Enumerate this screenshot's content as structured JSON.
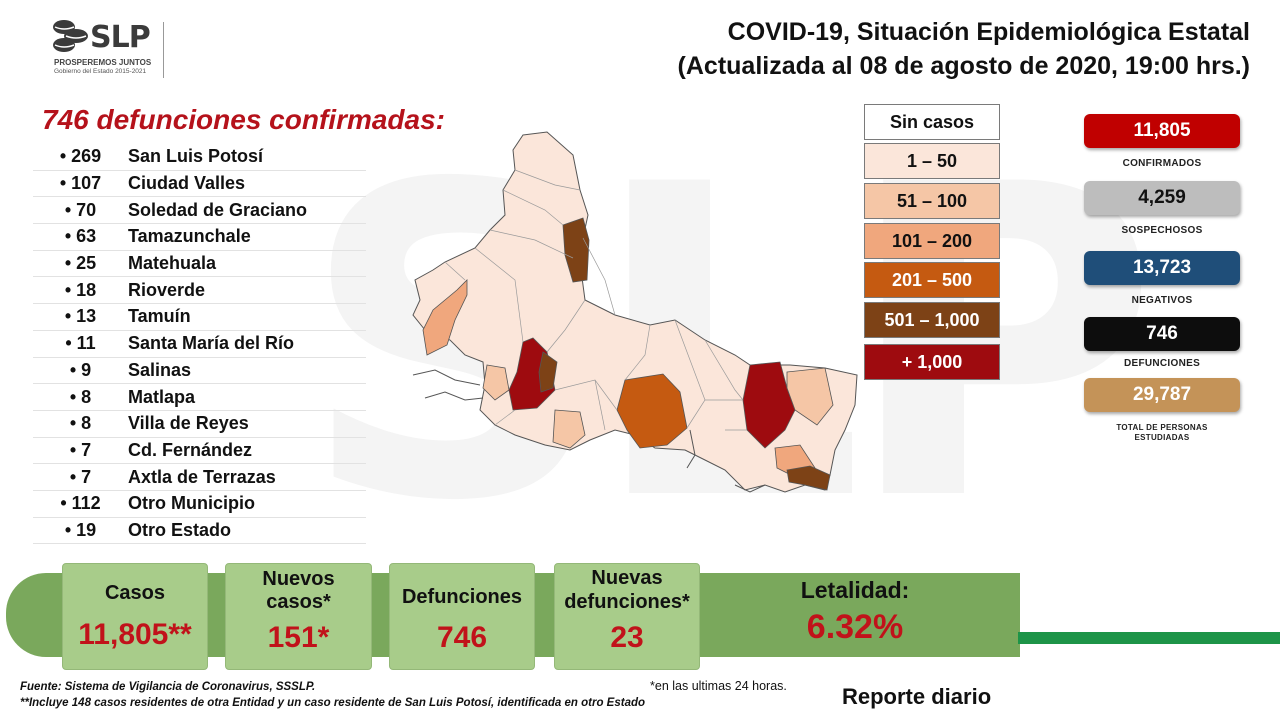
{
  "header": {
    "logo_text": "SLP",
    "logo_sub1": "PROSPEREMOS JUNTOS",
    "logo_sub2": "Gobierno del Estado 2015-2021",
    "title_line1": "COVID-19, Situación Epidemiológica Estatal",
    "title_line2": "(Actualizada al 08 de agosto de 2020, 19:00 hrs.)"
  },
  "deaths": {
    "heading": "746 defunciones confirmadas:",
    "rows": [
      {
        "count": "• 269",
        "name": "San Luis Potosí"
      },
      {
        "count": "• 107",
        "name": "Ciudad Valles"
      },
      {
        "count": "• 70",
        "name": "Soledad de Graciano"
      },
      {
        "count": "• 63",
        "name": "Tamazunchale"
      },
      {
        "count": "• 25",
        "name": "Matehuala"
      },
      {
        "count": "• 18",
        "name": "Rioverde"
      },
      {
        "count": "• 13",
        "name": "Tamuín"
      },
      {
        "count": "• 11",
        "name": "Santa María del Río"
      },
      {
        "count": "• 9",
        "name": "Salinas"
      },
      {
        "count": "• 8",
        "name": "Matlapa"
      },
      {
        "count": "• 8",
        "name": "Villa de Reyes"
      },
      {
        "count": "• 7",
        "name": "Cd. Fernández"
      },
      {
        "count": "• 7",
        "name": "Axtla de Terrazas"
      },
      {
        "count": "• 112",
        "name": "Otro Municipio"
      },
      {
        "count": "• 19",
        "name": "Otro Estado"
      }
    ]
  },
  "legend": [
    {
      "label": "Sin casos",
      "color": "#ffffff",
      "text_color": "#111111"
    },
    {
      "label": "1 – 50",
      "color": "#fbe6da",
      "text_color": "#111111"
    },
    {
      "label": "51 – 100",
      "color": "#f5c6a6",
      "text_color": "#111111"
    },
    {
      "label": "101 – 200",
      "color": "#f0a77d",
      "text_color": "#111111"
    },
    {
      "label": "201 – 500",
      "color": "#c55a11",
      "text_color": "#ffffff"
    },
    {
      "label": "501 – 1,000",
      "color": "#7d4216",
      "text_color": "#ffffff"
    },
    {
      "label": "+ 1,000",
      "color": "#9e0b0f",
      "text_color": "#ffffff"
    }
  ],
  "stats": [
    {
      "value": "11,805",
      "label": "CONFIRMADOS",
      "color": "#c00000"
    },
    {
      "value": "4,259",
      "label": "SOSPECHOSOS",
      "color": "#bdbdbd"
    },
    {
      "value": "13,723",
      "label": "NEGATIVOS",
      "color": "#1f4e79"
    },
    {
      "value": "746",
      "label": "DEFUNCIONES",
      "color": "#0d0d0d"
    },
    {
      "value": "29,787",
      "label_line1": "TOTAL DE PERSONAS",
      "label_line2": "ESTUDIADAS",
      "color": "#c49358"
    }
  ],
  "summary": {
    "casos_label": "Casos",
    "casos_value": "11,805**",
    "nuevos_label_1": "Nuevos",
    "nuevos_label_2": "casos*",
    "nuevos_value": "151*",
    "def_label": "Defunciones",
    "def_value": "746",
    "nuevas_def_label_1": "Nuevas",
    "nuevas_def_label_2": "defunciones*",
    "nuevas_def_value": "23",
    "letalidad_label": "Letalidad:",
    "letalidad_value": "6.32%"
  },
  "footer": {
    "source": "Fuente: Sistema de Vigilancia de Coronavirus, SSSLP.",
    "note": "**Incluye 148 casos residentes de otra Entidad y un caso residente de San Luis Potosí, identificada en otro Estado",
    "last24": "*en las ultimas 24 horas.",
    "report": "Reporte diario"
  }
}
